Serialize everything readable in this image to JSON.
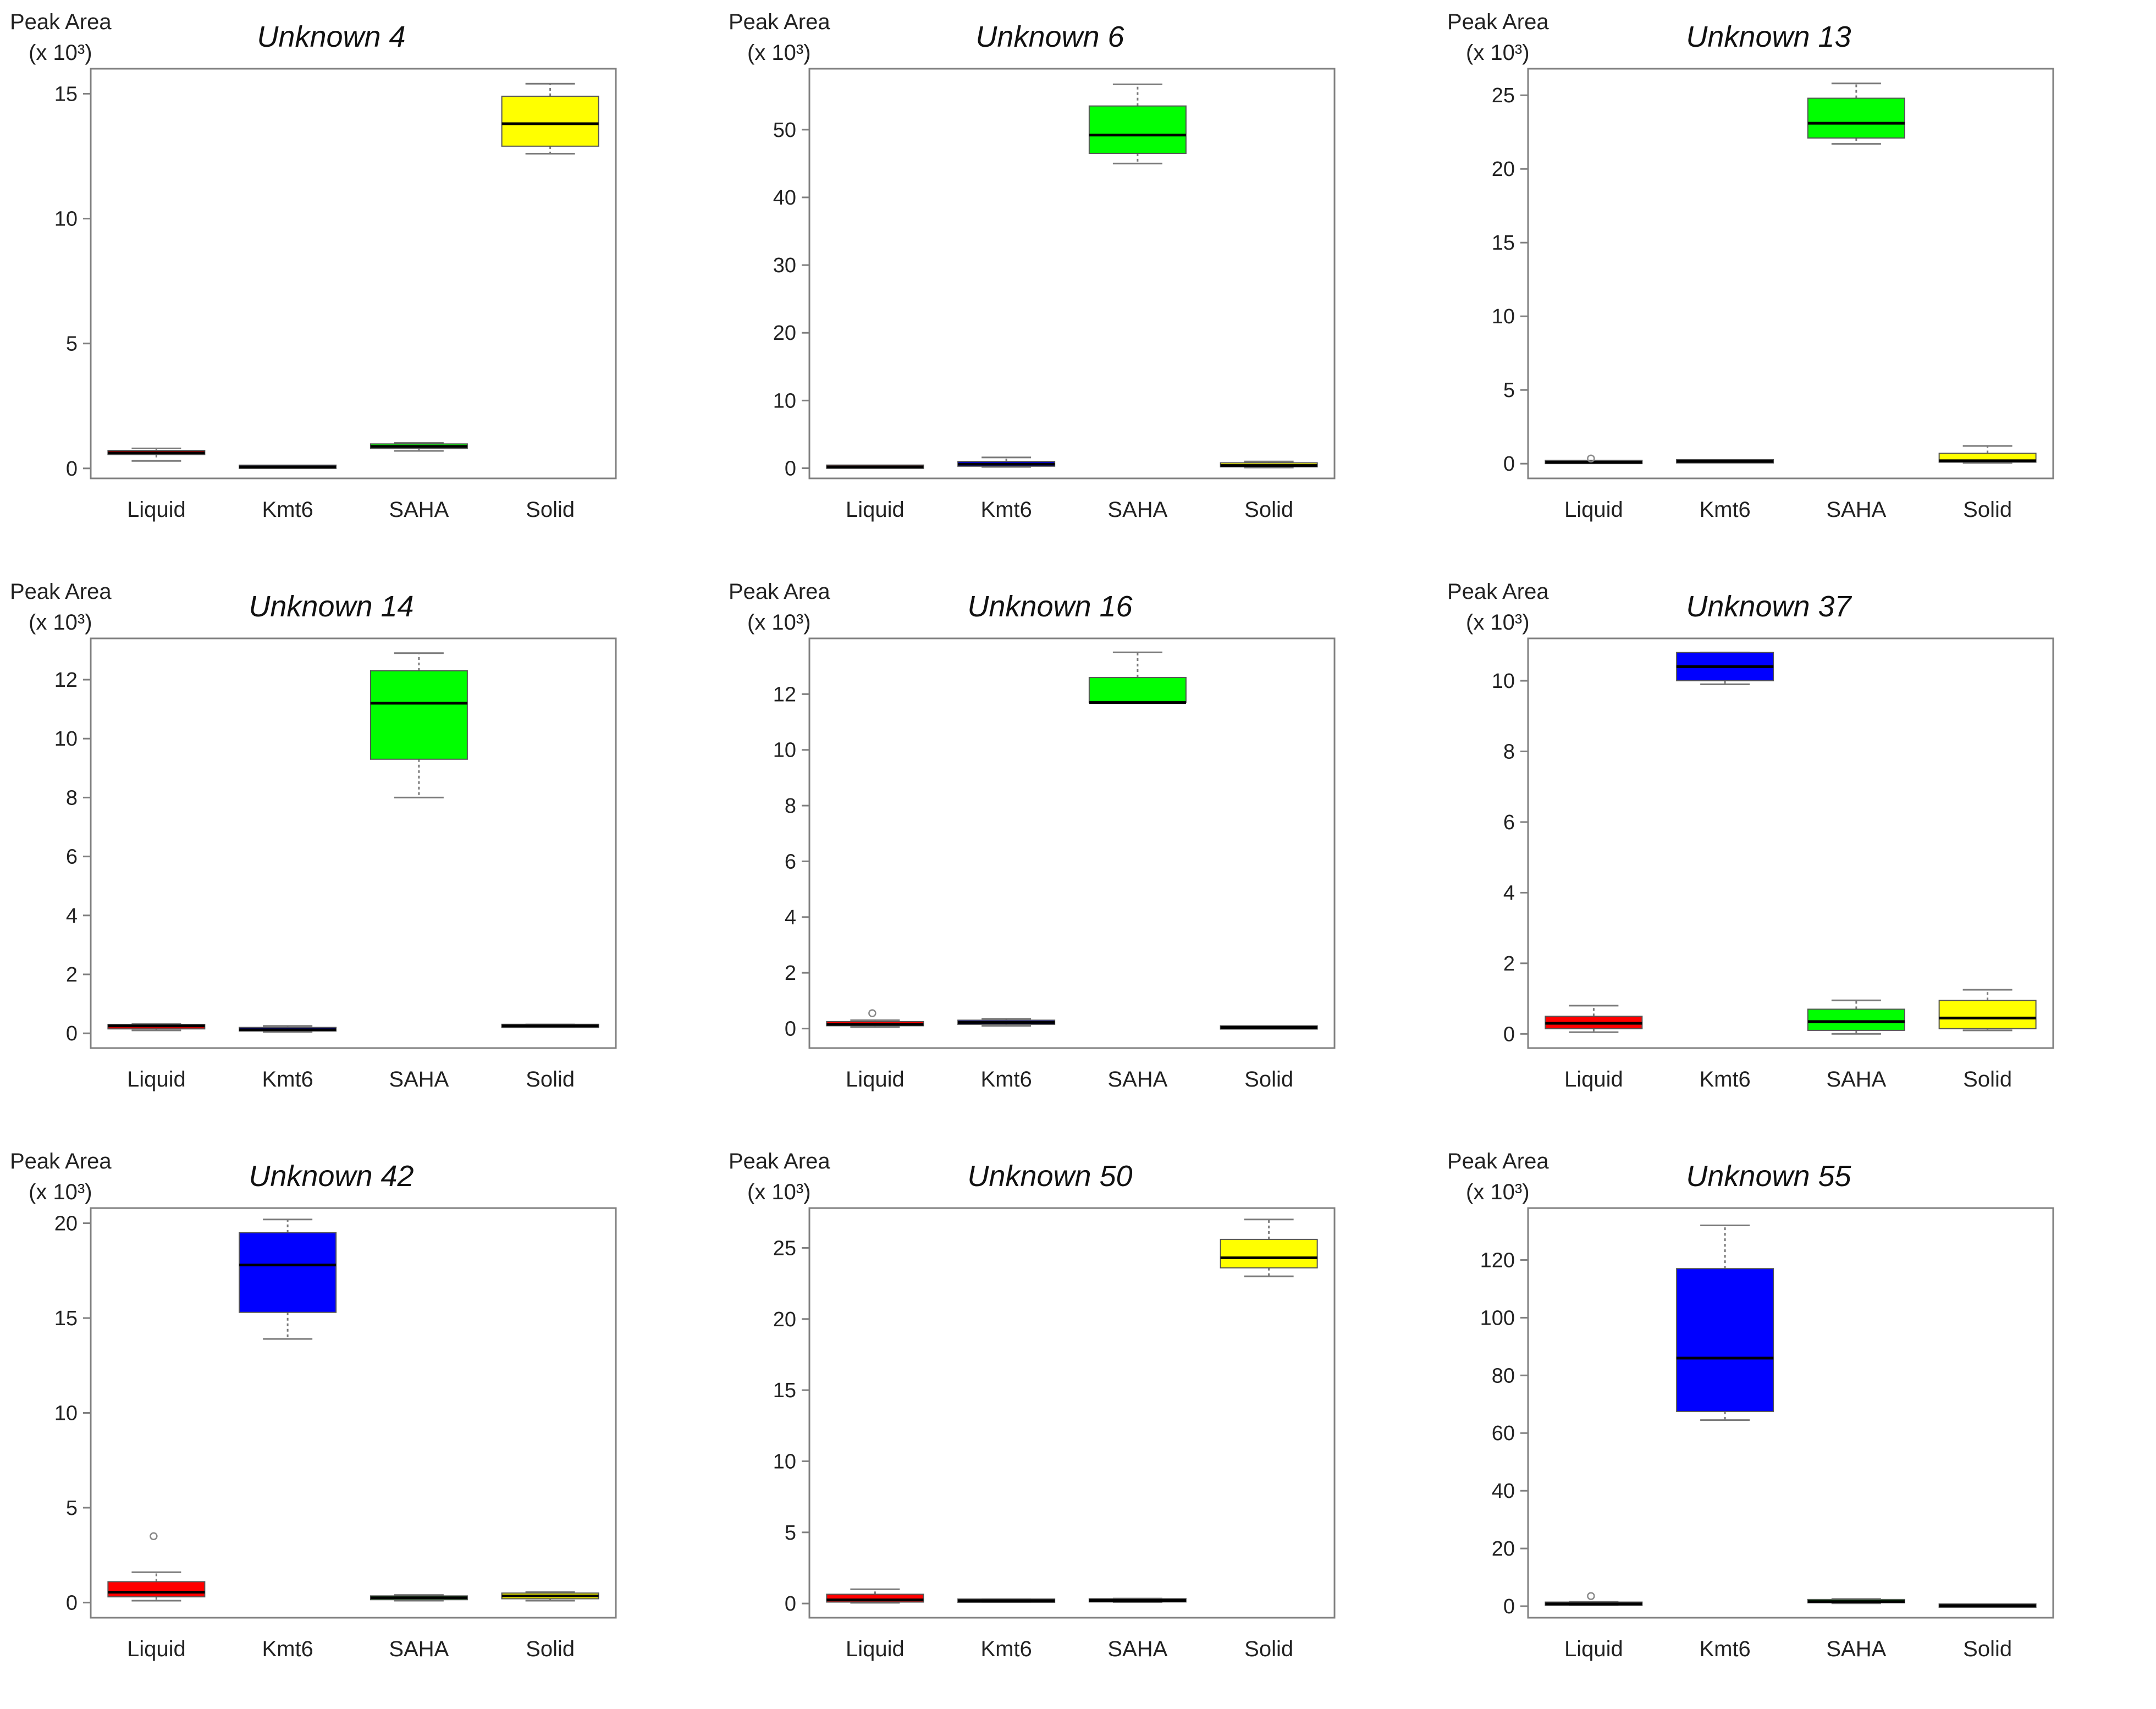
{
  "chart_data": [
    {
      "type": "boxplot",
      "title": "Unknown 4",
      "ylabel": "Peak Area",
      "yunit": "(x 10³)",
      "categories": [
        "Liquid",
        "Kmt6",
        "SAHA",
        "Solid"
      ],
      "colors": [
        "#ff0000",
        "#0000ff",
        "#00ff00",
        "#ffff00"
      ],
      "ylim": [
        -0.4,
        16
      ],
      "yticks": [
        0,
        5,
        10,
        15
      ],
      "boxes": [
        {
          "min": 0.3,
          "q1": 0.55,
          "median": 0.62,
          "q3": 0.72,
          "max": 0.8,
          "outliers": []
        },
        {
          "min": 0.03,
          "q1": 0.05,
          "median": 0.06,
          "q3": 0.08,
          "max": 0.1,
          "outliers": []
        },
        {
          "min": 0.7,
          "q1": 0.8,
          "median": 0.88,
          "q3": 0.98,
          "max": 1.02,
          "outliers": []
        },
        {
          "min": 12.6,
          "q1": 12.9,
          "median": 13.8,
          "q3": 14.9,
          "max": 15.4,
          "outliers": []
        }
      ]
    },
    {
      "type": "boxplot",
      "title": "Unknown 6",
      "ylabel": "Peak Area",
      "yunit": "(x 10³)",
      "categories": [
        "Liquid",
        "Kmt6",
        "SAHA",
        "Solid"
      ],
      "colors": [
        "#ff0000",
        "#0000ff",
        "#00ff00",
        "#ffff00"
      ],
      "ylim": [
        -1.5,
        59
      ],
      "yticks": [
        0,
        10,
        20,
        30,
        40,
        50
      ],
      "boxes": [
        {
          "min": 0.1,
          "q1": 0.15,
          "median": 0.2,
          "q3": 0.3,
          "max": 0.35,
          "outliers": []
        },
        {
          "min": 0.2,
          "q1": 0.3,
          "median": 0.6,
          "q3": 1.0,
          "max": 1.6,
          "outliers": []
        },
        {
          "min": 45.0,
          "q1": 46.5,
          "median": 49.2,
          "q3": 53.5,
          "max": 56.7,
          "outliers": []
        },
        {
          "min": 0.1,
          "q1": 0.2,
          "median": 0.4,
          "q3": 0.8,
          "max": 1.0,
          "outliers": []
        }
      ]
    },
    {
      "type": "boxplot",
      "title": "Unknown 13",
      "ylabel": "Peak Area",
      "yunit": "(x 10³)",
      "categories": [
        "Liquid",
        "Kmt6",
        "SAHA",
        "Solid"
      ],
      "colors": [
        "#ff0000",
        "#0000ff",
        "#00ff00",
        "#ffff00"
      ],
      "ylim": [
        -1,
        26.8
      ],
      "yticks": [
        0,
        5,
        10,
        15,
        20,
        25
      ],
      "boxes": [
        {
          "min": 0.05,
          "q1": 0.08,
          "median": 0.1,
          "q3": 0.15,
          "max": 0.2,
          "outliers": [
            0.35
          ]
        },
        {
          "min": 0.1,
          "q1": 0.12,
          "median": 0.15,
          "q3": 0.2,
          "max": 0.25,
          "outliers": []
        },
        {
          "min": 21.7,
          "q1": 22.1,
          "median": 23.1,
          "q3": 24.8,
          "max": 25.8,
          "outliers": []
        },
        {
          "min": 0.05,
          "q1": 0.1,
          "median": 0.2,
          "q3": 0.7,
          "max": 1.2,
          "outliers": []
        }
      ]
    },
    {
      "type": "boxplot",
      "title": "Unknown 14",
      "ylabel": "Peak Area",
      "yunit": "(x 10³)",
      "categories": [
        "Liquid",
        "Kmt6",
        "SAHA",
        "Solid"
      ],
      "colors": [
        "#ff0000",
        "#0000ff",
        "#00ff00",
        "#ffff00"
      ],
      "ylim": [
        -0.5,
        13.4
      ],
      "yticks": [
        0,
        2,
        4,
        6,
        8,
        10,
        12
      ],
      "boxes": [
        {
          "min": 0.1,
          "q1": 0.15,
          "median": 0.25,
          "q3": 0.3,
          "max": 0.32,
          "outliers": []
        },
        {
          "min": 0.05,
          "q1": 0.08,
          "median": 0.12,
          "q3": 0.2,
          "max": 0.25,
          "outliers": []
        },
        {
          "min": 8.0,
          "q1": 9.3,
          "median": 11.2,
          "q3": 12.3,
          "max": 12.9,
          "outliers": []
        },
        {
          "min": 0.2,
          "q1": 0.22,
          "median": 0.25,
          "q3": 0.28,
          "max": 0.3,
          "outliers": []
        }
      ]
    },
    {
      "type": "boxplot",
      "title": "Unknown 16",
      "ylabel": "Peak Area",
      "yunit": "(x 10³)",
      "categories": [
        "Liquid",
        "Kmt6",
        "SAHA",
        "Solid"
      ],
      "colors": [
        "#ff0000",
        "#0000ff",
        "#00ff00",
        "#ffff00"
      ],
      "ylim": [
        -0.7,
        14.0
      ],
      "yticks": [
        0,
        2,
        4,
        6,
        8,
        10,
        12
      ],
      "boxes": [
        {
          "min": 0.05,
          "q1": 0.1,
          "median": 0.15,
          "q3": 0.25,
          "max": 0.3,
          "outliers": [
            0.55
          ]
        },
        {
          "min": 0.1,
          "q1": 0.15,
          "median": 0.22,
          "q3": 0.3,
          "max": 0.35,
          "outliers": []
        },
        {
          "min": 11.7,
          "q1": 11.7,
          "median": 11.7,
          "q3": 12.6,
          "max": 13.5,
          "outliers": []
        },
        {
          "min": 0.02,
          "q1": 0.03,
          "median": 0.04,
          "q3": 0.05,
          "max": 0.06,
          "outliers": []
        }
      ]
    },
    {
      "type": "boxplot",
      "title": "Unknown 37",
      "ylabel": "Peak Area",
      "yunit": "(x 10³)",
      "categories": [
        "Liquid",
        "Kmt6",
        "SAHA",
        "Solid"
      ],
      "colors": [
        "#ff0000",
        "#0000ff",
        "#00ff00",
        "#ffff00"
      ],
      "ylim": [
        -0.4,
        11.2
      ],
      "yticks": [
        0,
        2,
        4,
        6,
        8,
        10
      ],
      "boxes": [
        {
          "min": 0.05,
          "q1": 0.15,
          "median": 0.3,
          "q3": 0.5,
          "max": 0.8,
          "outliers": []
        },
        {
          "min": 9.9,
          "q1": 10.0,
          "median": 10.4,
          "q3": 10.8,
          "max": 10.8,
          "outliers": []
        },
        {
          "min": 0.0,
          "q1": 0.1,
          "median": 0.35,
          "q3": 0.7,
          "max": 0.95,
          "outliers": []
        },
        {
          "min": 0.1,
          "q1": 0.15,
          "median": 0.45,
          "q3": 0.95,
          "max": 1.25,
          "outliers": []
        }
      ]
    },
    {
      "type": "boxplot",
      "title": "Unknown 42",
      "ylabel": "Peak Area",
      "yunit": "(x 10³)",
      "categories": [
        "Liquid",
        "Kmt6",
        "SAHA",
        "Solid"
      ],
      "colors": [
        "#ff0000",
        "#0000ff",
        "#00ff00",
        "#ffff00"
      ],
      "ylim": [
        -0.8,
        20.8
      ],
      "yticks": [
        0,
        5,
        10,
        15,
        20
      ],
      "boxes": [
        {
          "min": 0.1,
          "q1": 0.3,
          "median": 0.55,
          "q3": 1.1,
          "max": 1.6,
          "outliers": [
            3.5
          ]
        },
        {
          "min": 13.9,
          "q1": 15.3,
          "median": 17.8,
          "q3": 19.5,
          "max": 20.2,
          "outliers": []
        },
        {
          "min": 0.1,
          "q1": 0.15,
          "median": 0.25,
          "q3": 0.35,
          "max": 0.4,
          "outliers": []
        },
        {
          "min": 0.1,
          "q1": 0.2,
          "median": 0.35,
          "q3": 0.5,
          "max": 0.55,
          "outliers": []
        }
      ]
    },
    {
      "type": "boxplot",
      "title": "Unknown 50",
      "ylabel": "Peak Area",
      "yunit": "(x 10³)",
      "categories": [
        "Liquid",
        "Kmt6",
        "SAHA",
        "Solid"
      ],
      "colors": [
        "#ff0000",
        "#0000ff",
        "#00ff00",
        "#ffff00"
      ],
      "ylim": [
        -1,
        27.8
      ],
      "yticks": [
        0,
        5,
        10,
        15,
        20,
        25
      ],
      "boxes": [
        {
          "min": 0.05,
          "q1": 0.1,
          "median": 0.25,
          "q3": 0.65,
          "max": 1.0,
          "outliers": []
        },
        {
          "min": 0.1,
          "q1": 0.15,
          "median": 0.2,
          "q3": 0.25,
          "max": 0.3,
          "outliers": []
        },
        {
          "min": 0.1,
          "q1": 0.15,
          "median": 0.22,
          "q3": 0.3,
          "max": 0.35,
          "outliers": []
        },
        {
          "min": 23.0,
          "q1": 23.6,
          "median": 24.3,
          "q3": 25.6,
          "max": 27.0,
          "outliers": []
        }
      ]
    },
    {
      "type": "boxplot",
      "title": "Unknown 55",
      "ylabel": "Peak Area",
      "yunit": "(x 10³)",
      "categories": [
        "Liquid",
        "Kmt6",
        "SAHA",
        "Solid"
      ],
      "colors": [
        "#ff0000",
        "#0000ff",
        "#00ff00",
        "#ffff00"
      ],
      "ylim": [
        -4,
        138
      ],
      "yticks": [
        0,
        20,
        40,
        60,
        80,
        100,
        120
      ],
      "boxes": [
        {
          "min": 0.3,
          "q1": 0.5,
          "median": 0.8,
          "q3": 1.2,
          "max": 1.5,
          "outliers": [
            3.5
          ]
        },
        {
          "min": 64.5,
          "q1": 67.5,
          "median": 86.0,
          "q3": 117.0,
          "max": 132.0,
          "outliers": []
        },
        {
          "min": 1.0,
          "q1": 1.3,
          "median": 1.6,
          "q3": 2.2,
          "max": 2.5,
          "outliers": []
        },
        {
          "min": 0.1,
          "q1": 0.15,
          "median": 0.2,
          "q3": 0.25,
          "max": 0.3,
          "outliers": []
        }
      ]
    }
  ]
}
